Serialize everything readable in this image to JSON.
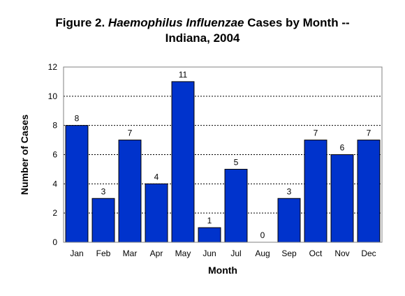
{
  "chart_data": {
    "type": "bar",
    "title": {
      "prefix": "Figure 2. ",
      "italic": "Haemophilus Influenzae",
      "suffix": " Cases by Month --",
      "line2": "Indiana, 2004"
    },
    "xlabel": "Month",
    "ylabel": "Number of Cases",
    "categories": [
      "Jan",
      "Feb",
      "Mar",
      "Apr",
      "May",
      "Jun",
      "Jul",
      "Aug",
      "Sep",
      "Oct",
      "Nov",
      "Dec"
    ],
    "values": [
      8,
      3,
      7,
      4,
      11,
      1,
      5,
      0,
      3,
      7,
      6,
      7
    ],
    "ylim": [
      0,
      12
    ],
    "yticks": [
      0,
      2,
      4,
      6,
      8,
      10,
      12
    ],
    "grid": true,
    "legend": "none",
    "bar_color": "#0033cc",
    "bar_stroke": "#000000"
  }
}
